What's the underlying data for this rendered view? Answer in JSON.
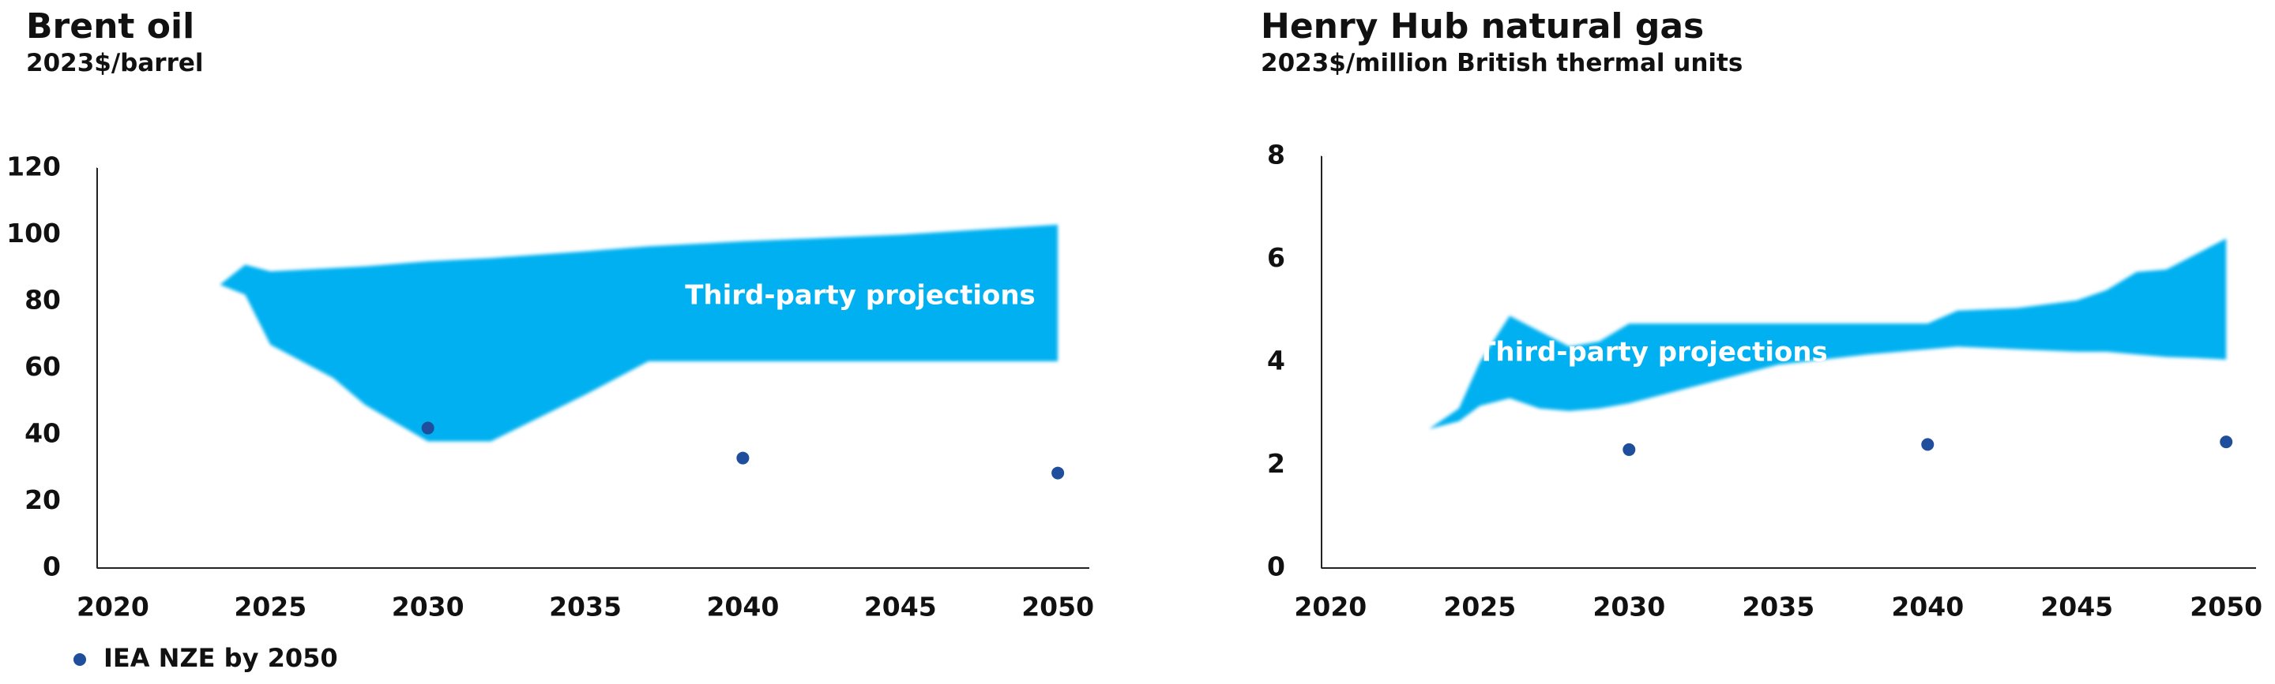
{
  "chart_data": [
    {
      "type": "range-scatter",
      "title": "Brent oil",
      "subtitle": "2023$/barrel",
      "xlim": [
        2019.5,
        2051
      ],
      "xticks": [
        2020,
        2025,
        2030,
        2035,
        2040,
        2045,
        2050
      ],
      "ylim": [
        0,
        120
      ],
      "yticks": [
        0,
        20,
        40,
        60,
        80,
        100,
        120
      ],
      "series": [
        {
          "type": "range",
          "color": "#00b0f0",
          "annotation": "Third-party projections",
          "x": [
            2023.4,
            2024.2,
            2025,
            2027,
            2028,
            2030,
            2032,
            2035,
            2037,
            2040,
            2045,
            2050
          ],
          "upper": [
            85,
            91,
            89,
            90,
            90.5,
            92,
            93,
            95,
            96.5,
            98,
            100,
            103
          ],
          "lower": [
            85,
            82,
            67,
            57,
            49,
            38,
            38,
            52,
            62,
            62,
            62,
            62
          ]
        },
        {
          "type": "scatter",
          "name": "IEA NZE by 2050",
          "color": "#1f4e9c",
          "x": [
            2030,
            2040,
            2050
          ],
          "values": [
            42,
            33,
            28.5
          ]
        }
      ]
    },
    {
      "type": "range-scatter",
      "title": "Henry Hub natural gas",
      "subtitle": "2023$/million British thermal units",
      "xlim": [
        2019.7,
        2051
      ],
      "xticks": [
        2020,
        2025,
        2030,
        2035,
        2040,
        2045,
        2050
      ],
      "ylim": [
        0,
        8
      ],
      "yticks": [
        0,
        2,
        4,
        6,
        8
      ],
      "series": [
        {
          "type": "range",
          "color": "#00b0f0",
          "annotation": "Third-party projections",
          "x": [
            2023.3,
            2024.3,
            2025,
            2026,
            2027,
            2028,
            2029,
            2030,
            2032,
            2035,
            2038,
            2040,
            2041,
            2043,
            2045,
            2046,
            2047,
            2048,
            2049,
            2050
          ],
          "upper": [
            2.7,
            3.1,
            4.0,
            4.9,
            4.6,
            4.3,
            4.4,
            4.75,
            4.75,
            4.75,
            4.75,
            4.75,
            5.0,
            5.05,
            5.2,
            5.4,
            5.75,
            5.8,
            6.1,
            6.4
          ],
          "lower": [
            2.7,
            2.85,
            3.15,
            3.3,
            3.1,
            3.05,
            3.1,
            3.2,
            3.5,
            3.95,
            4.15,
            4.25,
            4.3,
            4.25,
            4.2,
            4.2,
            4.15,
            4.1,
            4.08,
            4.05
          ]
        },
        {
          "type": "scatter",
          "color": "#1f4e9c",
          "x": [
            2030,
            2040,
            2050
          ],
          "values": [
            2.3,
            2.4,
            2.45
          ]
        }
      ]
    }
  ]
}
